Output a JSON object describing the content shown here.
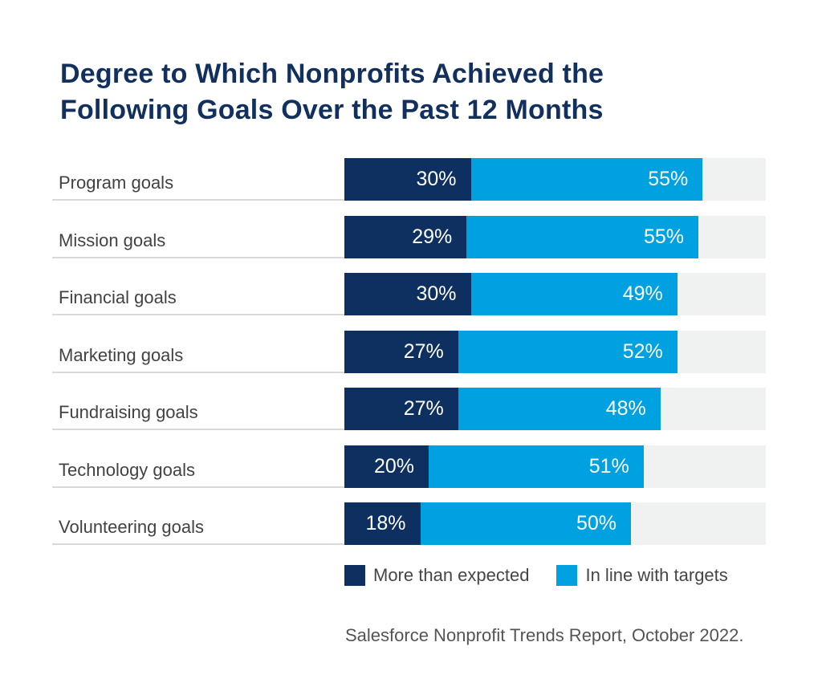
{
  "title": {
    "text": "Degree to Which Nonprofits Achieved the\nFollowing Goals Over the Past 12 Months"
  },
  "chart_data": {
    "type": "bar",
    "orientation": "horizontal",
    "stacked": true,
    "title": "Degree to Which Nonprofits Achieved the Following Goals Over the Past 12 Months",
    "categories": [
      "Program goals",
      "Mission goals",
      "Financial goals",
      "Marketing goals",
      "Fundraising goals",
      "Technology goals",
      "Volunteering goals"
    ],
    "series": [
      {
        "name": "More than expected",
        "color": "#0d3060",
        "values": [
          30,
          29,
          30,
          27,
          27,
          20,
          18
        ]
      },
      {
        "name": "In line with targets",
        "color": "#00a1e0",
        "values": [
          55,
          55,
          49,
          52,
          48,
          51,
          50
        ]
      }
    ],
    "value_suffix": "%",
    "xlim": [
      0,
      100
    ],
    "grid": false,
    "track_color": "#f0f1f1",
    "legend_position": "bottom",
    "source": "Salesforce Nonprofit Trends Report, October 2022."
  },
  "legend": {
    "items": [
      {
        "label": "More than expected",
        "color": "#0d3060"
      },
      {
        "label": "In line with targets",
        "color": "#00a1e0"
      }
    ]
  },
  "source": {
    "text": "Salesforce Nonprofit Trends Report, October 2022."
  },
  "colors": {
    "background": "#ffffff",
    "title_text": "#12305e",
    "category_text": "#424242",
    "value_text": "#ffffff",
    "row_underline": "#d9d9d9",
    "bar_track": "#f0f1f1",
    "legend_text": "#464646",
    "source_text": "#545454"
  }
}
